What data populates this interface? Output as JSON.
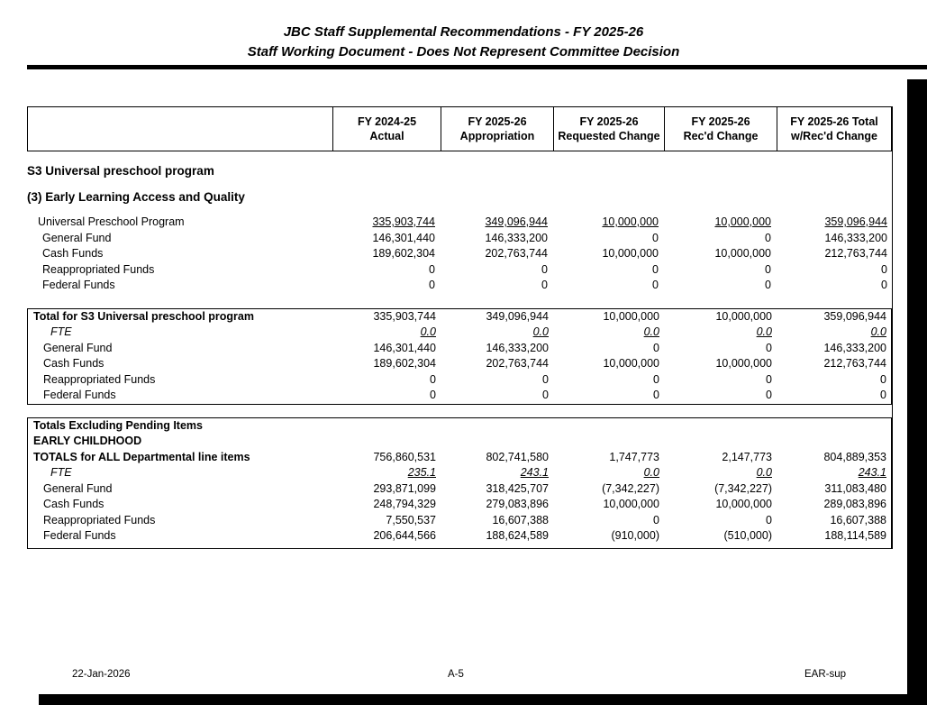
{
  "page_header": {
    "line1": "JBC Staff Supplemental Recommendations - FY 2025-26",
    "line2": "Staff Working Document - Does Not Represent Committee Decision"
  },
  "table": {
    "columns": [
      {
        "line1": "FY 2024-25",
        "line2": "Actual"
      },
      {
        "line1": "FY 2025-26",
        "line2": "Appropriation"
      },
      {
        "line1": "FY 2025-26",
        "line2": "Requested Change"
      },
      {
        "line1": "FY 2025-26",
        "line2": "Rec'd Change"
      },
      {
        "line1": "FY 2025-26 Total",
        "line2": "w/Rec'd Change"
      }
    ],
    "section_heading1": "S3 Universal preschool program",
    "section_heading2": "(3) Early Learning Access and Quality",
    "detail_rows": [
      {
        "label": "Universal Preschool Program",
        "indent": 1,
        "underline": true,
        "values": [
          "335,903,744",
          "349,096,944",
          "10,000,000",
          "10,000,000",
          "359,096,944"
        ]
      },
      {
        "label": "General Fund",
        "indent": 2,
        "values": [
          "146,301,440",
          "146,333,200",
          "0",
          "0",
          "146,333,200"
        ]
      },
      {
        "label": "Cash Funds",
        "indent": 2,
        "values": [
          "189,602,304",
          "202,763,744",
          "10,000,000",
          "10,000,000",
          "212,763,744"
        ]
      },
      {
        "label": "Reappropriated Funds",
        "indent": 2,
        "values": [
          "0",
          "0",
          "0",
          "0",
          "0"
        ]
      },
      {
        "label": "Federal Funds",
        "indent": 2,
        "values": [
          "0",
          "0",
          "0",
          "0",
          "0"
        ]
      }
    ],
    "total_box1": {
      "rows": [
        {
          "label": "Total for S3 Universal preschool program",
          "bold": true,
          "indent": 0,
          "values": [
            "335,903,744",
            "349,096,944",
            "10,000,000",
            "10,000,000",
            "359,096,944"
          ]
        },
        {
          "label": "FTE",
          "italic": true,
          "indent": 3,
          "underline": true,
          "values": [
            "0.0",
            "0.0",
            "0.0",
            "0.0",
            "0.0"
          ]
        },
        {
          "label": "General Fund",
          "indent": 2,
          "values": [
            "146,301,440",
            "146,333,200",
            "0",
            "0",
            "146,333,200"
          ]
        },
        {
          "label": "Cash Funds",
          "indent": 2,
          "values": [
            "189,602,304",
            "202,763,744",
            "10,000,000",
            "10,000,000",
            "212,763,744"
          ]
        },
        {
          "label": "Reappropriated Funds",
          "indent": 2,
          "values": [
            "0",
            "0",
            "0",
            "0",
            "0"
          ]
        },
        {
          "label": "Federal Funds",
          "indent": 2,
          "values": [
            "0",
            "0",
            "0",
            "0",
            "0"
          ]
        }
      ]
    },
    "total_box2": {
      "heading1": "Totals Excluding Pending Items",
      "heading2": "EARLY CHILDHOOD",
      "rows": [
        {
          "label": "TOTALS for ALL Departmental line items",
          "bold": true,
          "indent": 0,
          "values": [
            "756,860,531",
            "802,741,580",
            "1,747,773",
            "2,147,773",
            "804,889,353"
          ]
        },
        {
          "label": "FTE",
          "italic": true,
          "indent": 3,
          "underline": true,
          "values": [
            "235.1",
            "243.1",
            "0.0",
            "0.0",
            "243.1"
          ]
        },
        {
          "label": "General Fund",
          "indent": 2,
          "values": [
            "293,871,099",
            "318,425,707",
            "(7,342,227)",
            "(7,342,227)",
            "311,083,480"
          ]
        },
        {
          "label": "Cash Funds",
          "indent": 2,
          "values": [
            "248,794,329",
            "279,083,896",
            "10,000,000",
            "10,000,000",
            "289,083,896"
          ]
        },
        {
          "label": "Reappropriated Funds",
          "indent": 2,
          "values": [
            "7,550,537",
            "16,607,388",
            "0",
            "0",
            "16,607,388"
          ]
        },
        {
          "label": "Federal Funds",
          "indent": 2,
          "values": [
            "206,644,566",
            "188,624,589",
            "(910,000)",
            "(510,000)",
            "188,114,589"
          ]
        }
      ]
    }
  },
  "footer": {
    "date": "22-Jan-2026",
    "page": "A-5",
    "doc_code": "EAR-sup"
  }
}
